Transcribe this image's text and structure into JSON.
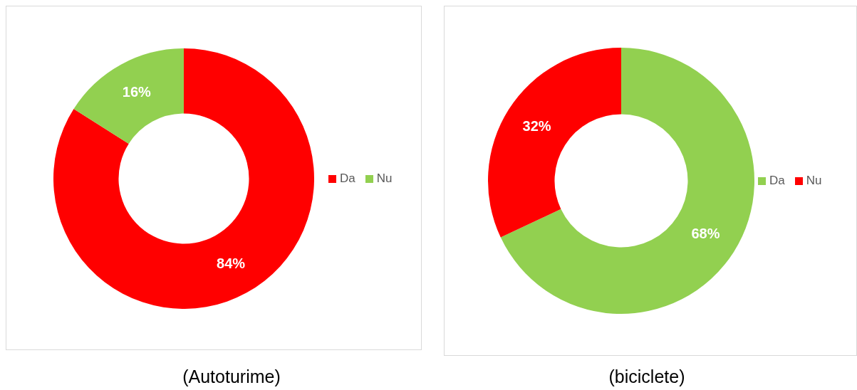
{
  "chart_data": [
    {
      "type": "donut",
      "title": "(Autoturime)",
      "categories": [
        "Da",
        "Nu"
      ],
      "values": [
        84,
        16
      ],
      "colors": [
        "#ff0000",
        "#92d050"
      ],
      "value_labels": [
        "84%",
        "16%"
      ],
      "legend": "right"
    },
    {
      "type": "donut",
      "title": "(biciclete)",
      "categories": [
        "Da",
        "Nu"
      ],
      "values": [
        68,
        32
      ],
      "colors": [
        "#92d050",
        "#ff0000"
      ],
      "value_labels": [
        "68%",
        "32%"
      ],
      "legend": "right"
    }
  ]
}
